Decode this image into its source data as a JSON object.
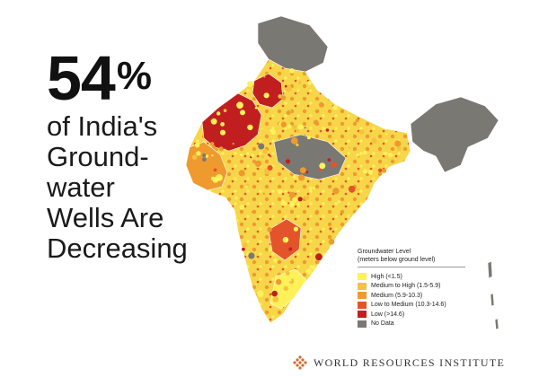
{
  "headline": {
    "number": "54",
    "percent_sign": "%",
    "lines": [
      "of India's",
      "Ground-",
      "water",
      "Wells Are",
      "Decreasing"
    ]
  },
  "map": {
    "region": "India",
    "icon": "india-groundwater-map",
    "colors": {
      "high": "#fff15a",
      "medium_high": "#f5c23e",
      "medium": "#ef9a2f",
      "low_medium": "#e4542a",
      "low": "#c11f1f",
      "no_data": "#7a7873",
      "border": "#ffffff"
    }
  },
  "legend": {
    "title": "Groundwater Level",
    "subtitle": "(meters below ground level)",
    "items": [
      {
        "label": "High (<1.5)",
        "color": "#fff15a"
      },
      {
        "label": "Medium to High (1.5-5.9)",
        "color": "#f5c23e"
      },
      {
        "label": "Medium (5.9-10.3)",
        "color": "#ef9a2f"
      },
      {
        "label": "Low to Medium (10.3-14.6)",
        "color": "#e4542a"
      },
      {
        "label": "Low (>14.6)",
        "color": "#c11f1f"
      },
      {
        "label": "No Data",
        "color": "#7a7873"
      }
    ]
  },
  "footer": {
    "org_name": "WORLD RESOURCES INSTITUTE",
    "logo_icon": "wri-logo-icon",
    "logo_color": "#d4692a"
  }
}
